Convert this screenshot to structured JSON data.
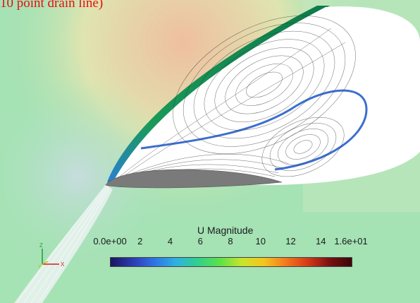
{
  "caption": "10 point drain line)",
  "legend": {
    "title": "U Magnitude",
    "ticks": [
      "0.0e+00",
      "2",
      "4",
      "6",
      "8",
      "10",
      "12",
      "14",
      "1.6e+01"
    ],
    "tick_values": [
      0,
      2,
      4,
      6,
      8,
      10,
      12,
      14,
      16
    ],
    "range": [
      0,
      16
    ],
    "colormap": [
      "#1a1660",
      "#2b3bb0",
      "#2f74e6",
      "#2fb2e0",
      "#32d08a",
      "#5ce24a",
      "#c9e52a",
      "#f5c51f",
      "#f4791e",
      "#d43a18",
      "#7a1010",
      "#3a0808"
    ]
  },
  "axes_triad": {
    "labels": [
      "Z",
      "Y",
      "X"
    ],
    "colors": {
      "z": "#1f9d3a",
      "y": "#c8b400",
      "x": "#d22020"
    }
  },
  "field_colors": {
    "freestream": "#8fe0a6",
    "stagnation": "#e9c3a4",
    "shear_layer": "#1a8a4e",
    "wake_core": "#3b6fd0",
    "airfoil": "#7a7a7a",
    "recirculation": "#ffffff"
  }
}
